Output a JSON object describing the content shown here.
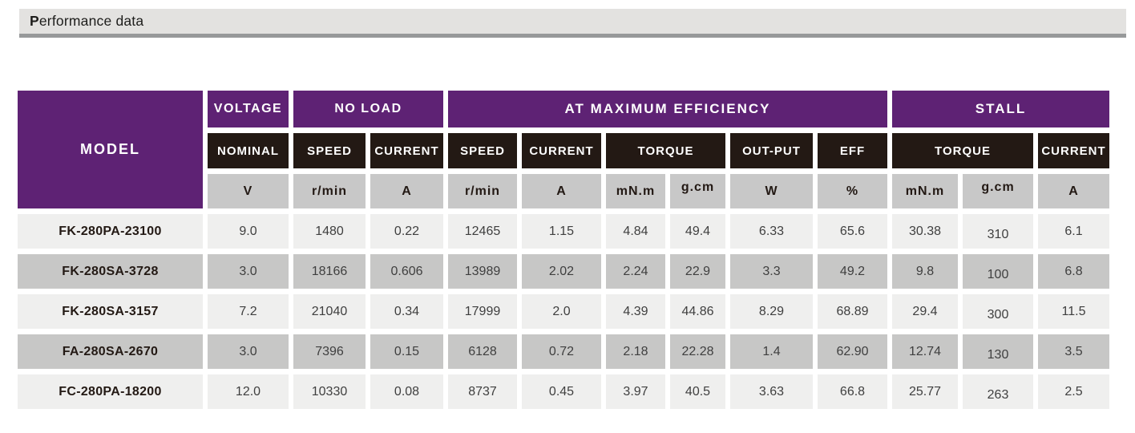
{
  "section_header": {
    "title": "Performance data",
    "title_initial": "P",
    "title_rest": "erformance data"
  },
  "colors": {
    "accent_purple": "#5e2274",
    "header_dark": "#231914",
    "unit_gray": "#c8c8c8",
    "row_light": "#efefee",
    "row_dark": "#c7c7c6",
    "bar_background": "#e3e2e0",
    "bar_rule": "#97999a"
  },
  "table": {
    "model_header": "MODEL",
    "group_headers": [
      {
        "label": "VOLTAGE"
      },
      {
        "label": "NO LOAD"
      },
      {
        "label": "AT MAXIMUM EFFICIENCY"
      },
      {
        "label": "STALL"
      }
    ],
    "sub_headers": [
      "NOMINAL",
      "SPEED",
      "CURRENT",
      "SPEED",
      "CURRENT",
      "TORQUE",
      "OUT-PUT",
      "EFF",
      "TORQUE",
      "CURRENT"
    ],
    "unit_headers": [
      "V",
      "r/min",
      "A",
      "r/min",
      "A",
      "mN.m",
      "g.cm",
      "W",
      "%",
      "mN.m",
      "g.cm",
      "A"
    ],
    "rows": [
      {
        "model": "FK-280PA-23100",
        "values": [
          "9.0",
          "1480",
          "0.22",
          "12465",
          "1.15",
          "4.84",
          "49.4",
          "6.33",
          "65.6",
          "30.38",
          "310",
          "6.1"
        ]
      },
      {
        "model": "FK-280SA-3728",
        "values": [
          "3.0",
          "18166",
          "0.606",
          "13989",
          "2.02",
          "2.24",
          "22.9",
          "3.3",
          "49.2",
          "9.8",
          "100",
          "6.8"
        ]
      },
      {
        "model": "FK-280SA-3157",
        "values": [
          "7.2",
          "21040",
          "0.34",
          "17999",
          "2.0",
          "4.39",
          "44.86",
          "8.29",
          "68.89",
          "29.4",
          "300",
          "11.5"
        ]
      },
      {
        "model": "FA-280SA-2670",
        "values": [
          "3.0",
          "7396",
          "0.15",
          "6128",
          "0.72",
          "2.18",
          "22.28",
          "1.4",
          "62.90",
          "12.74",
          "130",
          "3.5"
        ]
      },
      {
        "model": "FC-280PA-18200",
        "values": [
          "12.0",
          "10330",
          "0.08",
          "8737",
          "0.45",
          "3.97",
          "40.5",
          "3.63",
          "66.8",
          "25.77",
          "263",
          "2.5"
        ]
      }
    ]
  }
}
